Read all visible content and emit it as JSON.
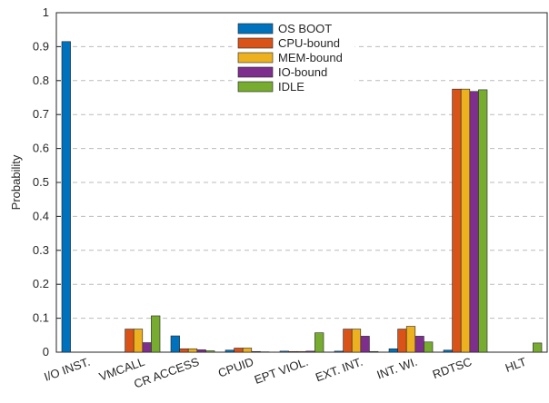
{
  "chart_data": {
    "type": "bar",
    "y_label": "Probability",
    "categories": [
      "I/O INST.",
      "VMCALL",
      "CR ACCESS",
      "CPUID",
      "EPT VIOL.",
      "EXT. INT.",
      "INT. WI.",
      "RDTSC",
      "HLT"
    ],
    "series": [
      {
        "name": "OS BOOT",
        "color": "#0072bd",
        "values": [
          0.915,
          0,
          0.048,
          0.006,
          0.003,
          0.003,
          0.01,
          0.006,
          0
        ]
      },
      {
        "name": "CPU-bound",
        "color": "#d95319",
        "values": [
          0,
          0.068,
          0.01,
          0.012,
          0.002,
          0.068,
          0.068,
          0.775,
          0
        ]
      },
      {
        "name": "MEM-bound",
        "color": "#edb120",
        "values": [
          0,
          0.068,
          0.01,
          0.012,
          0.002,
          0.068,
          0.076,
          0.775,
          0
        ]
      },
      {
        "name": "IO-bound",
        "color": "#7e2f8e",
        "values": [
          0,
          0.028,
          0.007,
          0.002,
          0.003,
          0.047,
          0.047,
          0.768,
          0
        ]
      },
      {
        "name": "IDLE",
        "color": "#77ac30",
        "values": [
          0,
          0.107,
          0.004,
          0.001,
          0.057,
          0.002,
          0.03,
          0.773,
          0.027
        ]
      }
    ],
    "ylim": [
      0,
      1
    ],
    "yticks": [
      0,
      0.1,
      0.2,
      0.3,
      0.4,
      0.5,
      0.6,
      0.7,
      0.8,
      0.9,
      1
    ],
    "grid": true,
    "legend": "top"
  }
}
